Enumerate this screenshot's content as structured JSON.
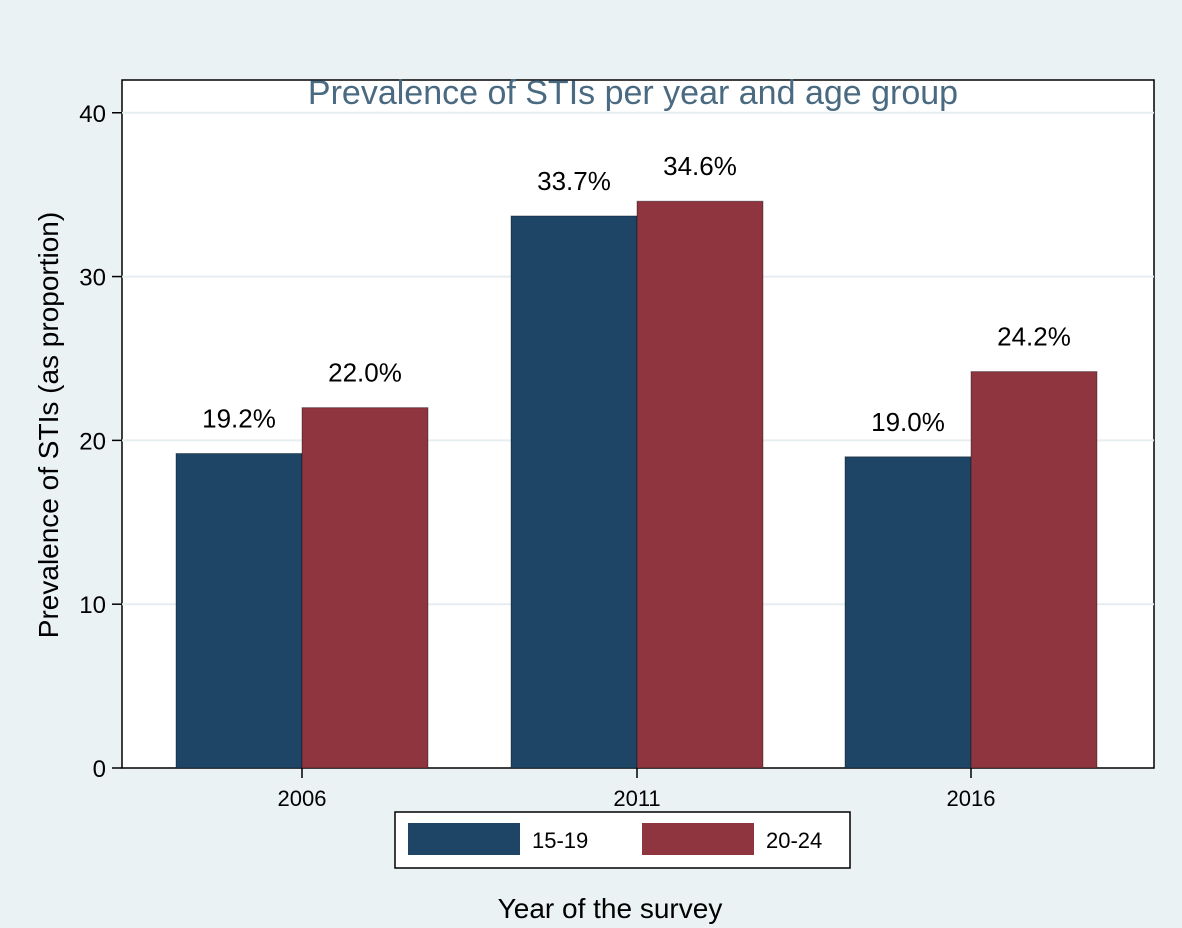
{
  "chart_data": {
    "type": "bar",
    "title": "Prevalence of STIs per year and age group",
    "xlabel": "Year of the survey",
    "ylabel": "Prevalence of STIs (as proportion)",
    "categories": [
      "2006",
      "2011",
      "2016"
    ],
    "series": [
      {
        "name": "15-19",
        "color": "#1e4466",
        "values": [
          19.2,
          33.7,
          19.0
        ],
        "labels": [
          "19.2%",
          "33.7%",
          "19.0%"
        ]
      },
      {
        "name": "20-24",
        "color": "#8f3540",
        "values": [
          22.0,
          34.6,
          24.2
        ],
        "labels": [
          "22.0%",
          "34.6%",
          "24.2%"
        ]
      }
    ],
    "ylim": [
      0,
      42
    ],
    "yticks": [
      0,
      10,
      20,
      30,
      40
    ],
    "grid": true,
    "legend_position": "bottom"
  },
  "colors": {
    "background": "#eaf2f3",
    "plot_background": "#ffffff",
    "title": "#4a6a82",
    "grid": "#e6eef0"
  }
}
